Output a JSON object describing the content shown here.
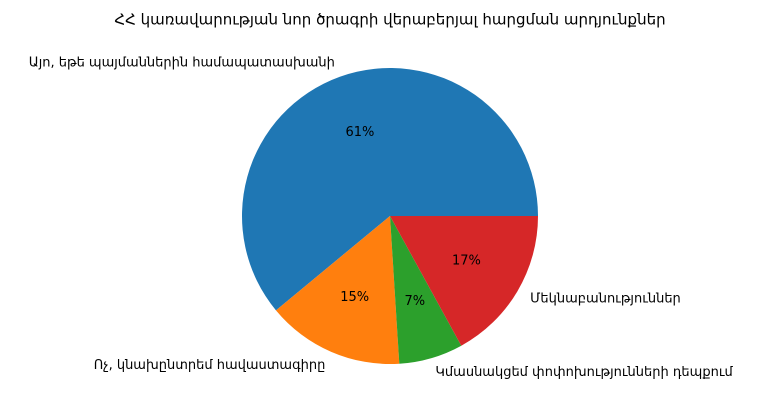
{
  "chart_data": {
    "type": "pie",
    "title": "ՀՀ կառավարության նոր ծրագրի վերաբերյալ հարցման արդյունքներ",
    "categories": [
      "Այո, եթե պայմաններին համապատասխանի",
      "Ոչ, կնախընտրեմ հավաստագիրը",
      "Կմասնակցեմ փոփոխությունների դեպքում",
      "Մեկնաբանություններ"
    ],
    "values": [
      61,
      15,
      7,
      17
    ],
    "value_labels": [
      "61%",
      "15%",
      "7%",
      "17%"
    ],
    "colors": [
      "#1f77b4",
      "#ff7f0e",
      "#2ca02c",
      "#d62728"
    ]
  }
}
